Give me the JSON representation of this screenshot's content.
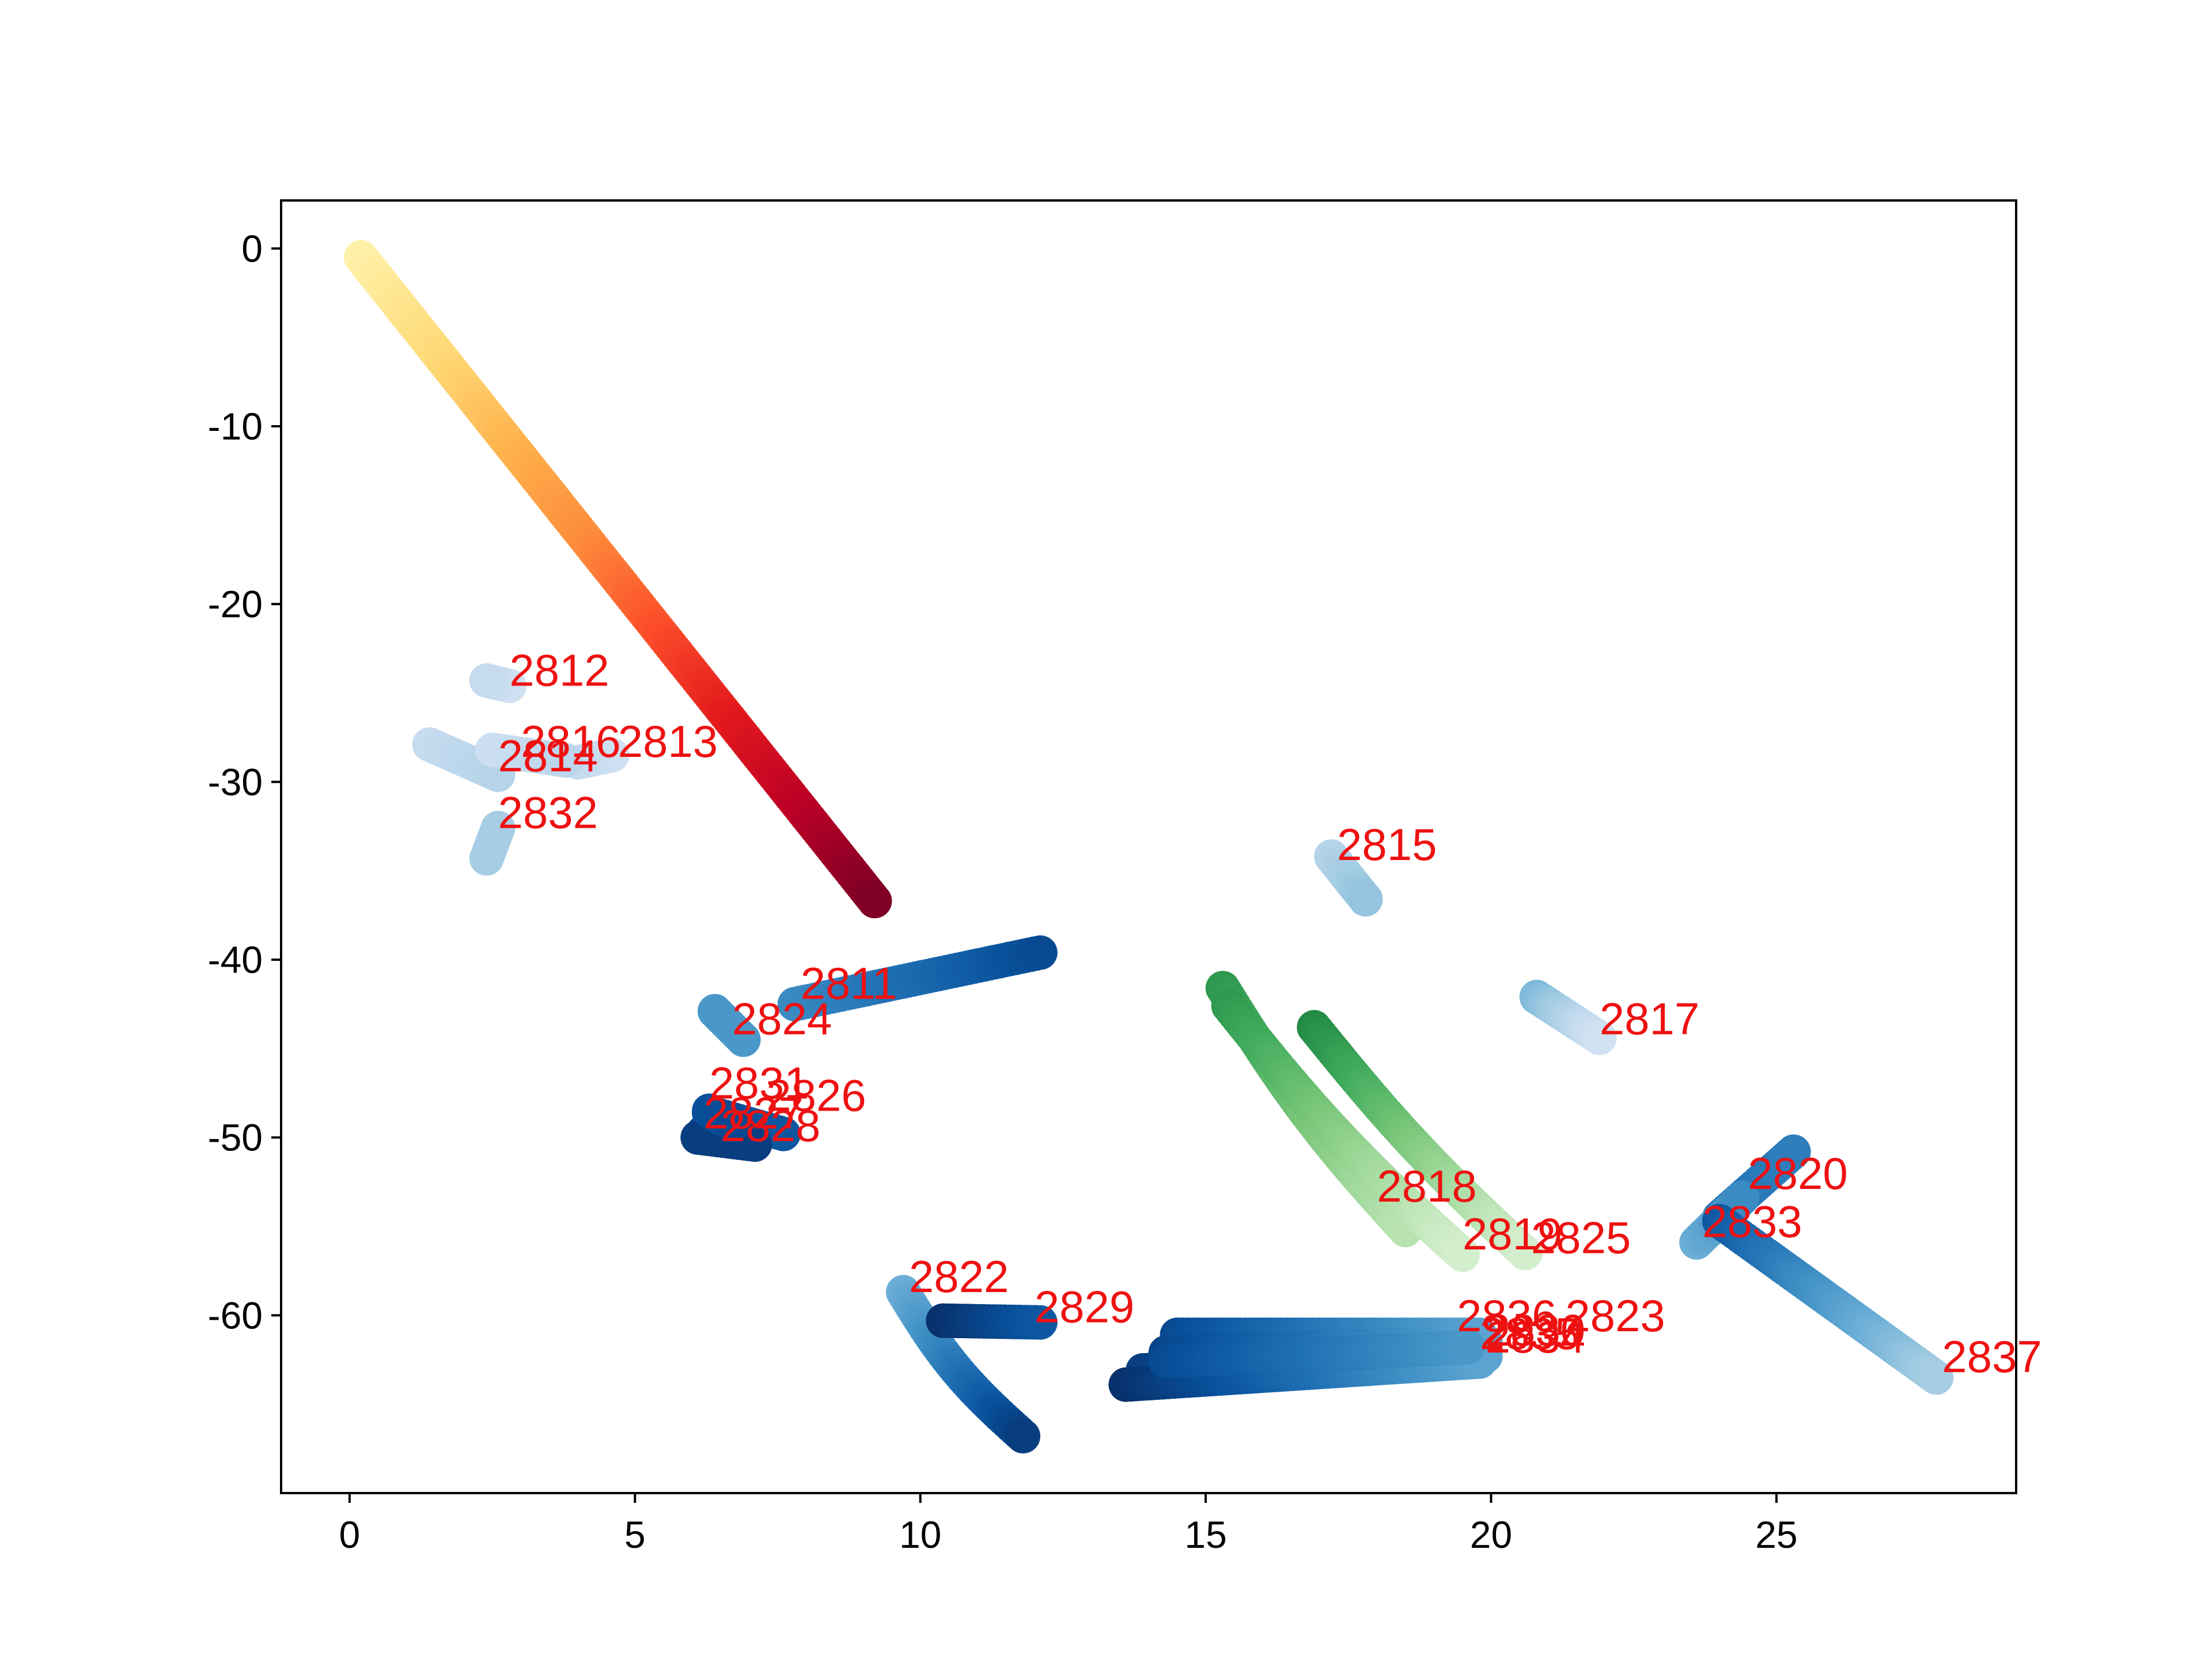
{
  "chart_data": {
    "type": "scatter",
    "title": "",
    "xlabel": "",
    "ylabel": "",
    "xlim": [
      -1.2,
      29.2
    ],
    "ylim": [
      -70,
      2.7
    ],
    "x_ticks": [
      0,
      5,
      10,
      15,
      20,
      25
    ],
    "y_ticks": [
      0,
      -10,
      -20,
      -30,
      -40,
      -50,
      -60
    ],
    "grid": false,
    "legend": "none",
    "label_color": "#ee1111",
    "colormaps": {
      "YlOrRd": [
        "#ffffcc",
        "#ffeda0",
        "#fed976",
        "#feb24c",
        "#fd8d3c",
        "#fc4e2a",
        "#e31a1c",
        "#bd0026",
        "#800026"
      ],
      "Blues": [
        "#f7fbff",
        "#deebf7",
        "#c6dbef",
        "#9ecae1",
        "#6baed6",
        "#4292c6",
        "#2171b5",
        "#08519c",
        "#08306b"
      ],
      "Greens": [
        "#f7fcf5",
        "#e5f5e0",
        "#c7e9c0",
        "#a1d99b",
        "#74c476",
        "#41ab5d",
        "#238b45",
        "#006d2c",
        "#00441b"
      ]
    },
    "series": [
      {
        "cmap": "YlOrRd",
        "start": [
          0.2,
          -0.5
        ],
        "end": [
          9.2,
          -36.7
        ],
        "c0": 0.1,
        "c1": 1.0
      },
      {
        "label": "2811",
        "cmap": "Blues",
        "start": [
          7.8,
          -42.5
        ],
        "end": [
          12.1,
          -39.6
        ],
        "c0": 0.65,
        "c1": 0.9
      },
      {
        "label": "2812",
        "cmap": "Blues",
        "start": [
          2.8,
          -24.6
        ],
        "end": [
          2.4,
          -24.3
        ],
        "c0": 0.2,
        "c1": 0.25
      },
      {
        "label": "2813",
        "cmap": "Blues",
        "start": [
          4.6,
          -28.5
        ],
        "end": [
          4.0,
          -28.9
        ],
        "c0": 0.2,
        "c1": 0.25
      },
      {
        "label": "2814",
        "cmap": "Blues",
        "start": [
          1.4,
          -27.9
        ],
        "end": [
          2.6,
          -29.6
        ],
        "c0": 0.25,
        "c1": 0.3
      },
      {
        "label": "2815",
        "cmap": "Blues",
        "start": [
          17.2,
          -34.2
        ],
        "end": [
          17.8,
          -36.6
        ],
        "c0": 0.3,
        "c1": 0.4
      },
      {
        "label": "2816",
        "cmap": "Blues",
        "start": [
          2.5,
          -28.2
        ],
        "end": [
          3.8,
          -28.8
        ],
        "c0": 0.22,
        "c1": 0.28
      },
      {
        "label": "2817",
        "cmap": "Blues",
        "start": [
          20.8,
          -42.1
        ],
        "end": [
          21.9,
          -44.4
        ],
        "c0": 0.45,
        "c1": 0.2
      },
      {
        "label": "2818",
        "cmap": "Greens",
        "start": [
          15.3,
          -41.6
        ],
        "end": [
          18.5,
          -55.2
        ],
        "c0": 0.7,
        "c1": 0.3,
        "bend": 0.5
      },
      {
        "label": "2819",
        "cmap": "Greens",
        "start": [
          15.4,
          -42.6
        ],
        "end": [
          19.5,
          -56.6
        ],
        "c0": 0.7,
        "c1": 0.2,
        "bend": 0.5
      },
      {
        "label": "2820",
        "cmap": "Blues",
        "start": [
          24.0,
          -54.5
        ],
        "end": [
          25.3,
          -50.8
        ],
        "c0": 0.75,
        "c1": 0.7
      },
      {
        "label": "2822",
        "cmap": "Blues",
        "start": [
          9.7,
          -58.7
        ],
        "end": [
          11.8,
          -66.8
        ],
        "c0": 0.5,
        "c1": 0.95,
        "bend": 0.5
      },
      {
        "label": "2823",
        "cmap": "Blues",
        "start": [
          14.5,
          -61.1
        ],
        "end": [
          19.8,
          -61.1
        ],
        "c0": 0.9,
        "c1": 0.55
      },
      {
        "label": "2824",
        "cmap": "Blues",
        "start": [
          6.4,
          -42.9
        ],
        "end": [
          6.9,
          -44.5
        ],
        "c0": 0.6,
        "c1": 0.6
      },
      {
        "label": "2825",
        "cmap": "Greens",
        "start": [
          16.9,
          -43.8
        ],
        "end": [
          20.6,
          -56.5
        ],
        "c0": 0.75,
        "c1": 0.2,
        "bend": 0.4
      },
      {
        "label": "2826",
        "cmap": "Blues",
        "start": [
          6.3,
          -48.6
        ],
        "end": [
          7.6,
          -49.8
        ],
        "c0": 0.92,
        "c1": 0.85
      },
      {
        "label": "2827",
        "cmap": "Blues",
        "start": [
          6.2,
          -49.7
        ],
        "end": [
          6.9,
          -50.1
        ],
        "c0": 0.9,
        "c1": 0.95
      },
      {
        "label": "2828",
        "cmap": "Blues",
        "start": [
          6.1,
          -50.0
        ],
        "end": [
          7.1,
          -50.4
        ],
        "c0": 0.95,
        "c1": 0.95
      },
      {
        "label": "2829",
        "cmap": "Blues",
        "start": [
          10.4,
          -60.3
        ],
        "end": [
          12.1,
          -60.4
        ],
        "c0": 1.0,
        "c1": 0.85
      },
      {
        "label": "2830",
        "cmap": "Blues",
        "start": [
          14.3,
          -62.1
        ],
        "end": [
          19.9,
          -61.5
        ],
        "c0": 0.92,
        "c1": 0.55
      },
      {
        "label": "2831",
        "cmap": "Blues",
        "start": [
          6.3,
          -48.5
        ],
        "end": [
          6.7,
          -49.3
        ],
        "c0": 0.88,
        "c1": 0.9
      },
      {
        "label": "2832",
        "cmap": "Blues",
        "start": [
          2.4,
          -34.3
        ],
        "end": [
          2.6,
          -32.6
        ],
        "c0": 0.35,
        "c1": 0.35
      },
      {
        "label": "2833",
        "cmap": "Blues",
        "start": [
          23.6,
          -55.9
        ],
        "end": [
          24.4,
          -53.4
        ],
        "c0": 0.5,
        "c1": 0.65
      },
      {
        "label": "2834",
        "cmap": "Blues",
        "start": [
          13.9,
          -63.1
        ],
        "end": [
          19.9,
          -62.3
        ],
        "c0": 0.95,
        "c1": 0.55
      },
      {
        "label": "2835",
        "cmap": "Blues",
        "start": [
          13.6,
          -63.9
        ],
        "end": [
          19.8,
          -62.6
        ],
        "c0": 1.0,
        "c1": 0.55
      },
      {
        "label": "2836",
        "cmap": "Blues",
        "start": [
          14.3,
          -62.6
        ],
        "end": [
          19.6,
          -61.8
        ],
        "c0": 0.9,
        "c1": 0.6
      },
      {
        "label": "2837",
        "cmap": "Blues",
        "start": [
          24.0,
          -54.7
        ],
        "end": [
          27.8,
          -63.5
        ],
        "c0": 0.85,
        "c1": 0.35
      }
    ],
    "annotations": [
      {
        "text": "2811",
        "x": 7.9,
        "y": -42.2
      },
      {
        "text": "2812",
        "x": 2.8,
        "y": -24.6
      },
      {
        "text": "2813",
        "x": 4.7,
        "y": -28.6
      },
      {
        "text": "2814",
        "x": 2.6,
        "y": -29.4
      },
      {
        "text": "2815",
        "x": 17.3,
        "y": -34.4
      },
      {
        "text": "2816",
        "x": 3.0,
        "y": -28.6
      },
      {
        "text": "2817",
        "x": 21.9,
        "y": -44.2
      },
      {
        "text": "2818",
        "x": 18.0,
        "y": -53.6
      },
      {
        "text": "2819",
        "x": 19.5,
        "y": -56.3
      },
      {
        "text": "2820",
        "x": 24.5,
        "y": -52.9
      },
      {
        "text": "2822",
        "x": 9.8,
        "y": -58.7
      },
      {
        "text": "2823",
        "x": 21.3,
        "y": -60.9
      },
      {
        "text": "2824",
        "x": 6.7,
        "y": -44.2
      },
      {
        "text": "2825",
        "x": 20.7,
        "y": -56.5
      },
      {
        "text": "2826",
        "x": 7.3,
        "y": -48.5
      },
      {
        "text": "2827",
        "x": 6.2,
        "y": -49.5
      },
      {
        "text": "2828",
        "x": 6.5,
        "y": -50.2
      },
      {
        "text": "2829",
        "x": 12.0,
        "y": -60.4
      },
      {
        "text": "2830",
        "x": 19.9,
        "y": -61.7
      },
      {
        "text": "2831",
        "x": 6.3,
        "y": -47.8
      },
      {
        "text": "2832",
        "x": 2.6,
        "y": -32.6
      },
      {
        "text": "2833",
        "x": 23.7,
        "y": -55.6
      },
      {
        "text": "2834",
        "x": 19.9,
        "y": -62.1
      },
      {
        "text": "2835",
        "x": 19.8,
        "y": -61.9
      },
      {
        "text": "2836",
        "x": 19.4,
        "y": -60.9
      },
      {
        "text": "2837",
        "x": 27.9,
        "y": -63.2
      }
    ]
  }
}
